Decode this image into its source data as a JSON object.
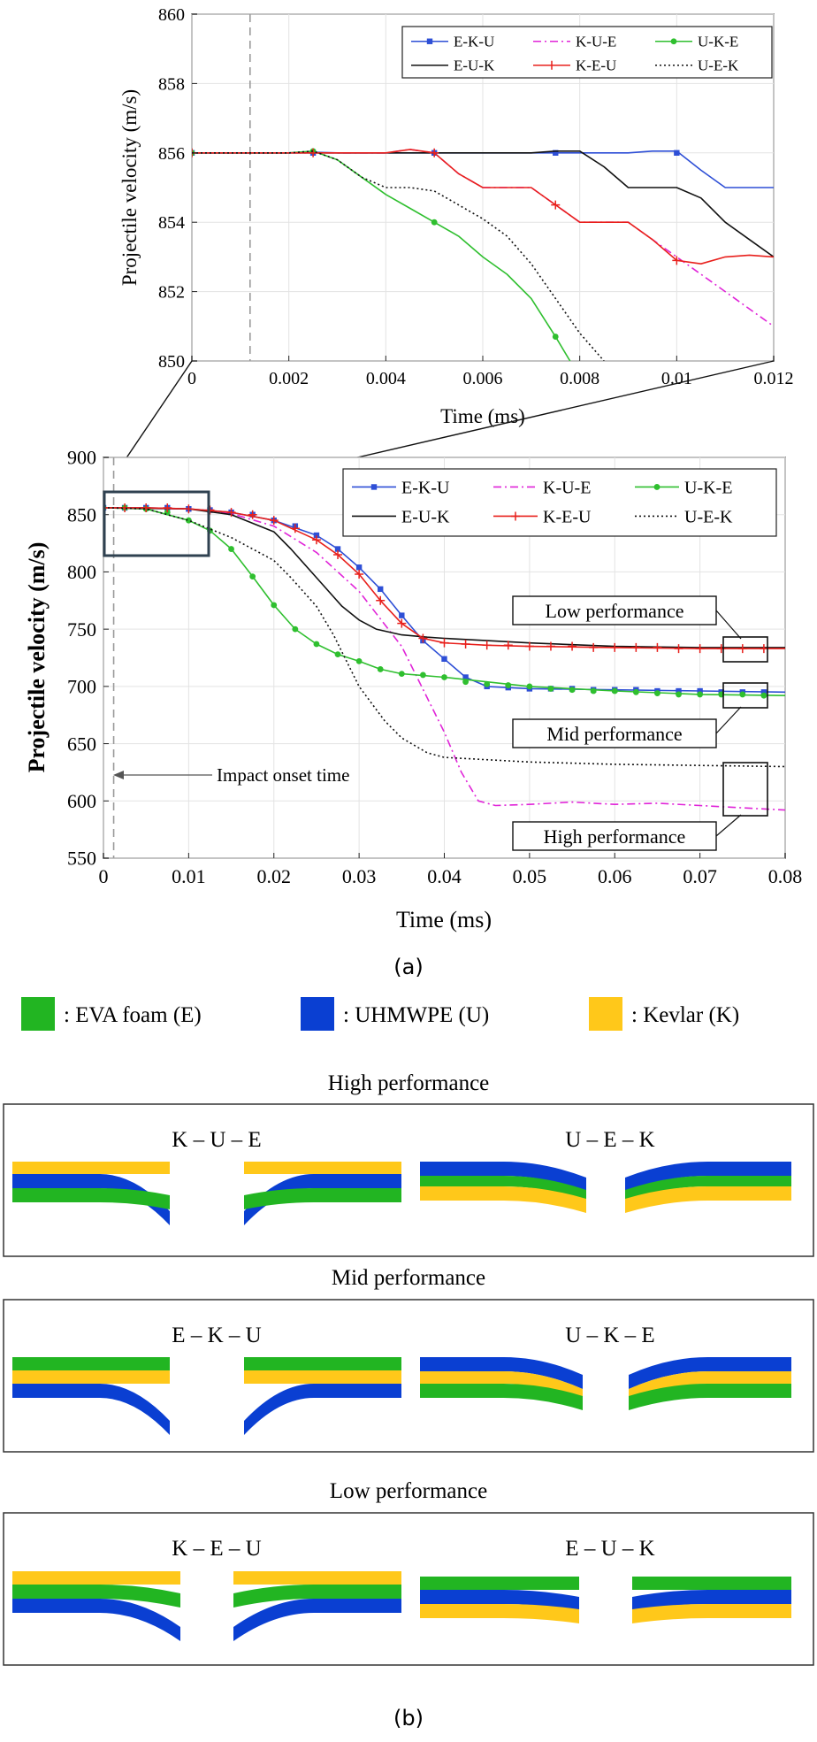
{
  "chart_data": [
    {
      "id": "zoom",
      "type": "line",
      "xlabel": "Time (ms)",
      "ylabel": "Projectile velocity (m/s)",
      "xlim": [
        0,
        0.012
      ],
      "ylim": [
        850,
        860
      ],
      "xticks": [
        "0",
        "0.002",
        "0.004",
        "0.006",
        "0.008",
        "0.01",
        "0.012"
      ],
      "yticks": [
        "850",
        "852",
        "854",
        "856",
        "858",
        "860"
      ],
      "onset_line_x": 0.0012,
      "series": [
        {
          "name": "E-K-U",
          "color": "#2e4fd6",
          "dash": "",
          "marker": "square",
          "x": [
            0,
            0.001,
            0.002,
            0.0025,
            0.003,
            0.004,
            0.005,
            0.006,
            0.007,
            0.0075,
            0.008,
            0.009,
            0.0095,
            0.01,
            0.0105,
            0.011,
            0.0115,
            0.012
          ],
          "y": [
            856,
            856,
            856,
            856.02,
            856,
            856,
            856,
            856,
            856,
            856,
            856,
            856,
            856.05,
            856.05,
            855.5,
            855,
            855,
            855
          ],
          "mx": [
            0,
            0.0025,
            0.005,
            0.0075,
            0.01
          ],
          "my": [
            856,
            856,
            856,
            856,
            856
          ]
        },
        {
          "name": "K-U-E",
          "color": "#e024d8",
          "dash": "9,4,2,4",
          "marker": "none",
          "x": [
            0,
            0.002,
            0.0025,
            0.003,
            0.004,
            0.0045,
            0.005,
            0.0055,
            0.006,
            0.007,
            0.0075,
            0.008,
            0.009,
            0.0095,
            0.01,
            0.011,
            0.012
          ],
          "y": [
            856,
            856,
            856,
            856,
            856,
            856.1,
            856,
            855.4,
            855,
            855,
            854.5,
            854,
            854,
            853.5,
            853,
            852,
            851
          ],
          "mx": [],
          "my": []
        },
        {
          "name": "U-K-E",
          "color": "#2fbf2f",
          "dash": "",
          "marker": "circle",
          "x": [
            0,
            0.001,
            0.002,
            0.0025,
            0.003,
            0.0035,
            0.004,
            0.0045,
            0.005,
            0.0055,
            0.006,
            0.0065,
            0.007,
            0.0075,
            0.0078
          ],
          "y": [
            856,
            856,
            856,
            856.05,
            855.8,
            855.3,
            854.8,
            854.4,
            854,
            853.6,
            853,
            852.5,
            851.8,
            850.7,
            850
          ],
          "mx": [
            0,
            0.0025,
            0.005,
            0.0075
          ],
          "my": [
            856,
            856.05,
            854,
            850.7
          ]
        },
        {
          "name": "E-U-K",
          "color": "#111111",
          "dash": "",
          "marker": "none",
          "x": [
            0,
            0.002,
            0.003,
            0.004,
            0.005,
            0.006,
            0.007,
            0.0075,
            0.008,
            0.0085,
            0.009,
            0.0095,
            0.01,
            0.0105,
            0.011,
            0.0115,
            0.012
          ],
          "y": [
            856,
            856,
            856,
            856,
            856,
            856,
            856,
            856.05,
            856.05,
            855.6,
            855,
            855,
            855,
            854.7,
            854,
            853.5,
            853
          ],
          "mx": [],
          "my": []
        },
        {
          "name": "K-E-U",
          "color": "#e8201c",
          "dash": "",
          "marker": "plus",
          "x": [
            0,
            0.002,
            0.003,
            0.004,
            0.0045,
            0.005,
            0.0055,
            0.006,
            0.0065,
            0.007,
            0.0075,
            0.008,
            0.0085,
            0.009,
            0.0095,
            0.01,
            0.0105,
            0.011,
            0.0115,
            0.012
          ],
          "y": [
            856,
            856,
            856,
            856,
            856.1,
            856,
            855.4,
            855,
            855,
            855,
            854.5,
            854,
            854,
            854,
            853.5,
            852.9,
            852.8,
            853,
            853.05,
            853
          ],
          "mx": [
            0,
            0.0025,
            0.005,
            0.0075,
            0.01
          ],
          "my": [
            856,
            856,
            856,
            854.5,
            852.9
          ]
        },
        {
          "name": "U-E-K",
          "color": "#111111",
          "dash": "2,3",
          "marker": "none",
          "x": [
            0,
            0.001,
            0.002,
            0.0025,
            0.003,
            0.0035,
            0.004,
            0.0045,
            0.005,
            0.0055,
            0.006,
            0.0065,
            0.007,
            0.0075,
            0.008,
            0.0085
          ],
          "y": [
            856,
            856,
            856,
            856.05,
            855.8,
            855.3,
            855,
            855,
            854.9,
            854.5,
            854.1,
            853.6,
            852.8,
            851.8,
            850.8,
            850
          ],
          "mx": [],
          "my": []
        }
      ]
    },
    {
      "id": "full",
      "type": "line",
      "xlabel": "Time (ms)",
      "ylabel": "Projectile velocity (m/s)",
      "xlim": [
        0,
        0.08
      ],
      "ylim": [
        550,
        900
      ],
      "xticks": [
        "0",
        "0.01",
        "0.02",
        "0.03",
        "0.04",
        "0.05",
        "0.06",
        "0.07",
        "0.08"
      ],
      "yticks": [
        "550",
        "600",
        "650",
        "700",
        "750",
        "800",
        "850",
        "900"
      ],
      "onset_line_x": 0.0012,
      "annotation": "Impact onset time",
      "performance_labels": [
        "Low performance",
        "Mid performance",
        "High performance"
      ],
      "series": [
        {
          "name": "E-K-U",
          "color": "#2e4fd6",
          "dash": "",
          "marker": "square",
          "x": [
            0,
            0.005,
            0.01,
            0.015,
            0.02,
            0.025,
            0.0275,
            0.03,
            0.0325,
            0.035,
            0.0375,
            0.04,
            0.0425,
            0.045,
            0.05,
            0.06,
            0.07,
            0.08
          ],
          "y": [
            856,
            856,
            855,
            852,
            845,
            832,
            820,
            804,
            785,
            762,
            740,
            724,
            708,
            700,
            698,
            697,
            696,
            695
          ],
          "mx": [
            0,
            0.0025,
            0.005,
            0.0075,
            0.01,
            0.0125,
            0.015,
            0.0175,
            0.02,
            0.0225,
            0.025,
            0.0275,
            0.03,
            0.0325,
            0.035,
            0.0375,
            0.04,
            0.0425,
            0.045,
            0.0475,
            0.05,
            0.0525,
            0.055,
            0.0575,
            0.06,
            0.0625,
            0.065,
            0.0675,
            0.07,
            0.0725,
            0.075,
            0.0775
          ],
          "my": [
            856,
            856,
            856,
            856,
            855,
            854,
            852,
            850,
            845,
            840,
            832,
            820,
            804,
            785,
            762,
            740,
            724,
            708,
            700,
            699,
            698,
            698,
            698,
            697,
            697,
            697,
            696,
            696,
            696,
            695,
            695,
            695
          ]
        },
        {
          "name": "K-U-E",
          "color": "#e024d8",
          "dash": "9,4,2,4",
          "marker": "none",
          "x": [
            0,
            0.01,
            0.015,
            0.02,
            0.025,
            0.03,
            0.035,
            0.038,
            0.04,
            0.042,
            0.044,
            0.046,
            0.05,
            0.055,
            0.06,
            0.065,
            0.07,
            0.075,
            0.08
          ],
          "y": [
            856,
            855,
            851,
            840,
            817,
            783,
            735,
            690,
            660,
            625,
            600,
            596,
            597,
            599,
            597,
            598,
            596,
            594,
            592
          ],
          "mx": [],
          "my": []
        },
        {
          "name": "U-K-E",
          "color": "#2fbf2f",
          "dash": "",
          "marker": "circle",
          "x": [
            0,
            0.005,
            0.01,
            0.0125,
            0.015,
            0.0175,
            0.02,
            0.0225,
            0.025,
            0.0275,
            0.03,
            0.0325,
            0.035,
            0.04,
            0.05,
            0.06,
            0.07,
            0.08
          ],
          "y": [
            856,
            855,
            845,
            836,
            820,
            796,
            771,
            750,
            737,
            728,
            722,
            715,
            711,
            708,
            700,
            696,
            693,
            692
          ],
          "mx": [
            0,
            0.0025,
            0.005,
            0.0075,
            0.01,
            0.0125,
            0.015,
            0.0175,
            0.02,
            0.0225,
            0.025,
            0.0275,
            0.03,
            0.0325,
            0.035,
            0.0375,
            0.04,
            0.0425,
            0.045,
            0.0475,
            0.05,
            0.0525,
            0.055,
            0.0575,
            0.06,
            0.0625,
            0.065,
            0.0675,
            0.07,
            0.0725,
            0.075,
            0.0775
          ],
          "my": [
            856,
            856,
            855,
            852,
            845,
            836,
            820,
            796,
            771,
            750,
            737,
            728,
            722,
            715,
            711,
            710,
            708,
            704,
            702,
            701,
            700,
            698,
            697,
            696,
            696,
            695,
            694,
            693,
            693,
            693,
            693,
            692
          ]
        },
        {
          "name": "E-U-K",
          "color": "#111111",
          "dash": "",
          "marker": "none",
          "x": [
            0,
            0.01,
            0.015,
            0.02,
            0.022,
            0.025,
            0.028,
            0.03,
            0.032,
            0.035,
            0.038,
            0.04,
            0.045,
            0.05,
            0.06,
            0.07,
            0.08
          ],
          "y": [
            856,
            855,
            850,
            835,
            820,
            795,
            770,
            758,
            750,
            745,
            743,
            742,
            740,
            738,
            735,
            734,
            734
          ],
          "mx": [],
          "my": []
        },
        {
          "name": "K-E-U",
          "color": "#e8201c",
          "dash": "",
          "marker": "plus",
          "x": [
            0,
            0.005,
            0.01,
            0.015,
            0.02,
            0.025,
            0.0275,
            0.03,
            0.0325,
            0.035,
            0.0375,
            0.04,
            0.0425,
            0.045,
            0.05,
            0.06,
            0.07,
            0.08
          ],
          "y": [
            856,
            856,
            855,
            852,
            845,
            828,
            815,
            798,
            775,
            755,
            742,
            738,
            737,
            736,
            735,
            734,
            733,
            733
          ],
          "mx": [
            0,
            0.0025,
            0.005,
            0.0075,
            0.01,
            0.0125,
            0.015,
            0.0175,
            0.02,
            0.0225,
            0.025,
            0.0275,
            0.03,
            0.0325,
            0.035,
            0.0375,
            0.04,
            0.0425,
            0.045,
            0.0475,
            0.05,
            0.0525,
            0.055,
            0.0575,
            0.06,
            0.0625,
            0.065,
            0.0675,
            0.07,
            0.0725,
            0.075,
            0.0775
          ],
          "my": [
            856,
            856,
            856,
            856,
            855,
            854,
            852,
            850,
            845,
            838,
            828,
            815,
            798,
            775,
            755,
            742,
            738,
            737,
            736,
            736,
            735,
            735,
            735,
            734,
            734,
            734,
            734,
            733,
            733,
            733,
            733,
            733
          ]
        },
        {
          "name": "U-E-K",
          "color": "#111111",
          "dash": "2,3",
          "marker": "none",
          "x": [
            0,
            0.005,
            0.01,
            0.015,
            0.02,
            0.022,
            0.025,
            0.027,
            0.03,
            0.033,
            0.035,
            0.038,
            0.04,
            0.045,
            0.05,
            0.06,
            0.07,
            0.08
          ],
          "y": [
            856,
            855,
            845,
            830,
            810,
            795,
            770,
            745,
            700,
            670,
            655,
            642,
            638,
            636,
            634,
            632,
            631,
            630
          ],
          "mx": [],
          "my": []
        }
      ]
    }
  ],
  "panel_labels": {
    "a": "(a)",
    "b": "(b)"
  },
  "materials": [
    {
      "label": ": EVA foam (E)",
      "color": "#22b522"
    },
    {
      "label": ": UHMWPE (U)",
      "color": "#0a3fd2"
    },
    {
      "label": ": Kevlar (K)",
      "color": "#ffc81a"
    }
  ],
  "panels": [
    {
      "title": "High performance",
      "configs": [
        "K – U – E",
        "U – E – K"
      ]
    },
    {
      "title": "Mid performance",
      "configs": [
        "E – K – U",
        "U – K – E"
      ]
    },
    {
      "title": "Low performance",
      "configs": [
        "K – E – U",
        "E – U – K"
      ]
    }
  ]
}
